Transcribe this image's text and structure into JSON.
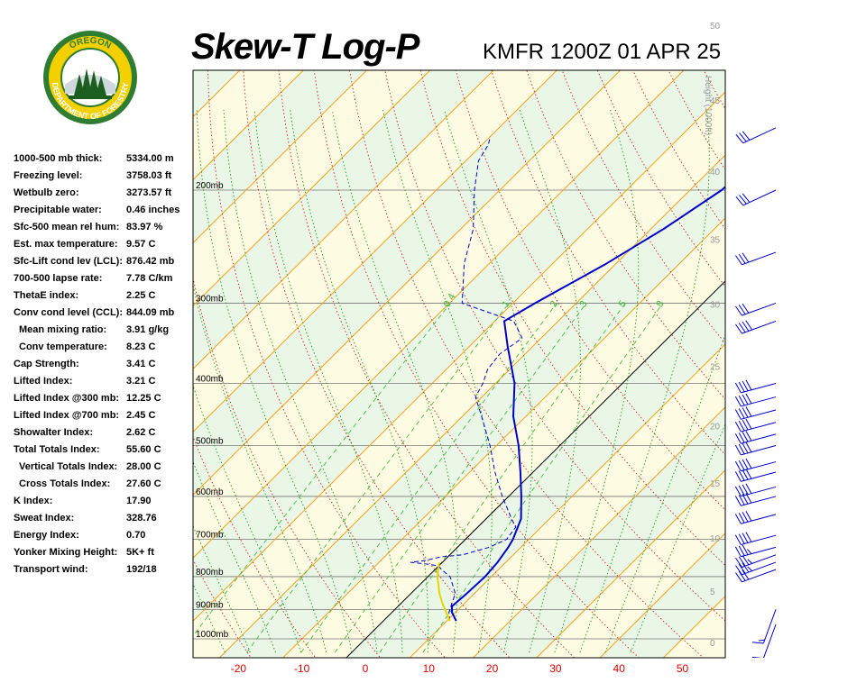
{
  "header": {
    "title": "Skew-T Log-P",
    "station": "KMFR 1200Z 01 APR 25"
  },
  "logo": {
    "top_text": "OREGON",
    "ring_text": "DEPARTMENT OF FORESTRY",
    "colors": {
      "ring": "#2e7d32",
      "inner": "#f4d000",
      "trees": "#1b5e20"
    }
  },
  "indices": [
    {
      "label": "1000-500 mb thick:",
      "value": "5334.00 m"
    },
    {
      "label": "Freezing level:",
      "value": "3758.03 ft"
    },
    {
      "label": "Wetbulb zero:",
      "value": "3273.57 ft"
    },
    {
      "label": "Precipitable water:",
      "value": "0.46 inches"
    },
    {
      "label": "Sfc-500 mean rel hum:",
      "value": "83.97 %"
    },
    {
      "label": "Est. max temperature:",
      "value": "9.57 C"
    },
    {
      "label": "Sfc-Lift cond lev (LCL):",
      "value": "876.42 mb"
    },
    {
      "label": "700-500 lapse rate:",
      "value": "7.78 C/km"
    },
    {
      "label": "ThetaE index:",
      "value": "2.25 C"
    },
    {
      "label": "Conv cond level (CCL):",
      "value": "844.09 mb"
    },
    {
      "label": "Mean mixing ratio:",
      "value": "3.91 g/kg",
      "sub": true
    },
    {
      "label": "Conv temperature:",
      "value": "8.23 C",
      "sub": true
    },
    {
      "label": "Cap Strength:",
      "value": "3.41 C"
    },
    {
      "label": "Lifted Index:",
      "value": "3.21 C"
    },
    {
      "label": "Lifted Index @300 mb:",
      "value": "12.25 C"
    },
    {
      "label": "Lifted Index @700 mb:",
      "value": "2.45 C"
    },
    {
      "label": "Showalter Index:",
      "value": "2.62 C"
    },
    {
      "label": "Total Totals Index:",
      "value": "55.60 C"
    },
    {
      "label": "Vertical Totals Index:",
      "value": "28.00 C",
      "sub": true
    },
    {
      "label": "Cross Totals Index:",
      "value": "27.60 C",
      "sub": true
    },
    {
      "label": "K Index:",
      "value": "17.90"
    },
    {
      "label": "Sweat Index:",
      "value": "328.76"
    },
    {
      "label": "Energy Index:",
      "value": "0.70"
    },
    {
      "label": "Yonker Mixing Height:",
      "value": "5K+ ft"
    },
    {
      "label": "Transport wind:",
      "value": "192/18"
    }
  ],
  "chart_data": {
    "type": "line",
    "chart_kind": "skew-t log-p",
    "title": "Skew-T Log-P",
    "subtitle": "KMFR 1200Z 01 APR 25",
    "x_axis": {
      "ticks": [
        "-20",
        "-10",
        "0",
        "10",
        "20",
        "30",
        "40",
        "50"
      ],
      "tick_values": [
        -20,
        -10,
        0,
        10,
        20,
        30,
        40,
        50
      ],
      "color": "#e00000"
    },
    "pressure_levels": [
      {
        "p": 200,
        "label": "200mb"
      },
      {
        "p": 300,
        "label": "300mb"
      },
      {
        "p": 400,
        "label": "400mb"
      },
      {
        "p": 500,
        "label": "500mb"
      },
      {
        "p": 600,
        "label": "600mb"
      },
      {
        "p": 700,
        "label": "700mb"
      },
      {
        "p": 800,
        "label": "800mb"
      },
      {
        "p": 900,
        "label": "900mb"
      },
      {
        "p": 1000,
        "label": "1000mb"
      }
    ],
    "height_axis": {
      "label": "Height (1000ft)",
      "ticks": [
        {
          "ft": 0,
          "label": "0"
        },
        {
          "ft": 5,
          "label": "5"
        },
        {
          "ft": 10,
          "label": "10"
        },
        {
          "ft": 15,
          "label": "15"
        },
        {
          "ft": 20,
          "label": "20"
        },
        {
          "ft": 25,
          "label": "25"
        },
        {
          "ft": 30,
          "label": "30"
        },
        {
          "ft": 35,
          "label": "35"
        },
        {
          "ft": 40,
          "label": "40"
        },
        {
          "ft": 45,
          "label": "45"
        },
        {
          "ft": 50,
          "label": "50"
        }
      ]
    },
    "mixing_ratio_labels": [
      "0.4",
      "1",
      "2",
      "3",
      "5",
      "8"
    ],
    "series": [
      {
        "name": "Temperature",
        "color": "#0000cc",
        "points": [
          [
            938,
            11.5
          ],
          [
            910,
            9.5
          ],
          [
            890,
            8.5
          ],
          [
            850,
            8.8
          ],
          [
            800,
            9.0
          ],
          [
            760,
            8.7
          ],
          [
            720,
            8.0
          ],
          [
            700,
            7.5
          ],
          [
            650,
            5.5
          ],
          [
            600,
            2.0
          ],
          [
            550,
            -2.0
          ],
          [
            500,
            -6.5
          ],
          [
            450,
            -12.0
          ],
          [
            400,
            -17.0
          ],
          [
            350,
            -24.0
          ],
          [
            320,
            -28.5
          ],
          [
            300,
            -26.5
          ],
          [
            260,
            -21.5
          ],
          [
            230,
            -18.0
          ],
          [
            200,
            -15.0
          ],
          [
            180,
            -14.5
          ],
          [
            165,
            -14.0
          ]
        ]
      },
      {
        "name": "Dewpoint",
        "color": "#0000cc",
        "dash": "dashed",
        "points": [
          [
            938,
            10.5
          ],
          [
            910,
            9.0
          ],
          [
            880,
            8.0
          ],
          [
            850,
            7.0
          ],
          [
            800,
            3.5
          ],
          [
            780,
            1.0
          ],
          [
            770,
            0.0
          ],
          [
            765,
            -2.0
          ],
          [
            760,
            -5.0
          ],
          [
            755,
            -3.0
          ],
          [
            745,
            -1.0
          ],
          [
            740,
            2.0
          ],
          [
            720,
            5.0
          ],
          [
            700,
            6.5
          ],
          [
            670,
            6.0
          ],
          [
            650,
            4.0
          ],
          [
            600,
            -1.0
          ],
          [
            550,
            -6.0
          ],
          [
            500,
            -11.0
          ],
          [
            450,
            -17.0
          ],
          [
            420,
            -21.0
          ],
          [
            400,
            -22.0
          ],
          [
            380,
            -23.5
          ],
          [
            360,
            -24.0
          ],
          [
            340,
            -23.0
          ],
          [
            320,
            -27.0
          ],
          [
            300,
            -38.0
          ],
          [
            260,
            -44.0
          ],
          [
            230,
            -48.0
          ],
          [
            200,
            -54.0
          ],
          [
            180,
            -58.0
          ],
          [
            170,
            -59.0
          ],
          [
            165,
            -60.0
          ]
        ]
      },
      {
        "name": "Parcel",
        "color": "#e6d600",
        "points": [
          [
            938,
            10.5
          ],
          [
            880,
            6.5
          ],
          [
            850,
            4.5
          ],
          [
            800,
            1.5
          ],
          [
            760,
            -0.5
          ]
        ]
      }
    ],
    "wind_barbs": [
      {
        "p": 950,
        "dir": 200,
        "spd": 10
      },
      {
        "p": 900,
        "dir": 200,
        "spd": 15
      },
      {
        "p": 780,
        "dir": 250,
        "spd": 30
      },
      {
        "p": 760,
        "dir": 250,
        "spd": 35
      },
      {
        "p": 740,
        "dir": 250,
        "spd": 35
      },
      {
        "p": 720,
        "dir": 255,
        "spd": 35
      },
      {
        "p": 690,
        "dir": 255,
        "spd": 40
      },
      {
        "p": 640,
        "dir": 255,
        "spd": 40
      },
      {
        "p": 600,
        "dir": 255,
        "spd": 40
      },
      {
        "p": 580,
        "dir": 255,
        "spd": 40
      },
      {
        "p": 550,
        "dir": 255,
        "spd": 40
      },
      {
        "p": 530,
        "dir": 255,
        "spd": 40
      },
      {
        "p": 500,
        "dir": 255,
        "spd": 40
      },
      {
        "p": 480,
        "dir": 255,
        "spd": 40
      },
      {
        "p": 460,
        "dir": 255,
        "spd": 40
      },
      {
        "p": 440,
        "dir": 255,
        "spd": 40
      },
      {
        "p": 420,
        "dir": 255,
        "spd": 40
      },
      {
        "p": 400,
        "dir": 255,
        "spd": 40
      },
      {
        "p": 320,
        "dir": 250,
        "spd": 40
      },
      {
        "p": 300,
        "dir": 250,
        "spd": 30
      },
      {
        "p": 250,
        "dir": 250,
        "spd": 30
      },
      {
        "p": 200,
        "dir": 245,
        "spd": 30
      },
      {
        "p": 160,
        "dir": 245,
        "spd": 30
      }
    ]
  }
}
